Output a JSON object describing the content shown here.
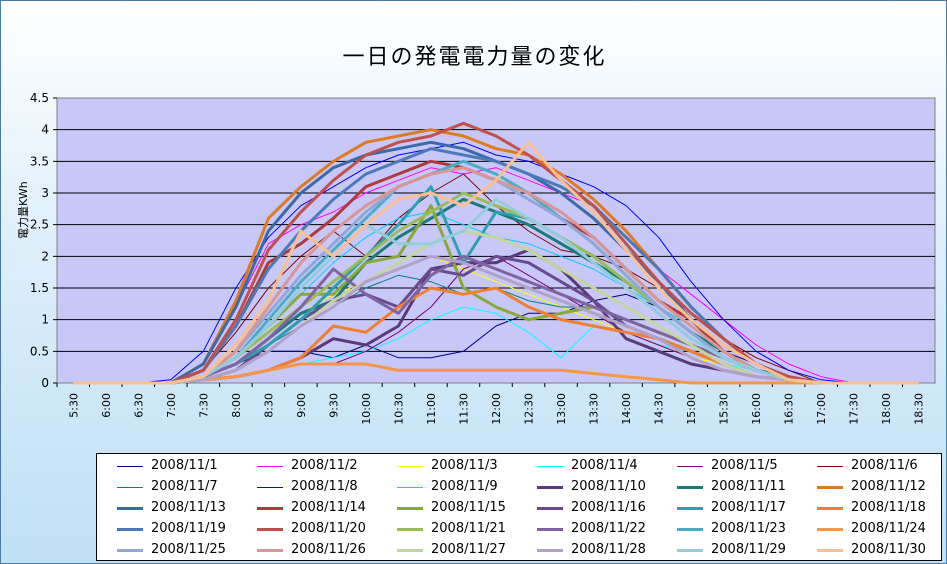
{
  "chart_data": {
    "type": "line",
    "title": "一日の発電電力量の変化",
    "ylabel": "電力量KWh",
    "xlabel": "",
    "ylim": [
      0,
      4.5
    ],
    "yticks": [
      "0",
      "0.5",
      "1",
      "1.5",
      "2",
      "2.5",
      "3",
      "3.5",
      "4",
      "4.5"
    ],
    "categories": [
      "5:30",
      "6:00",
      "6:30",
      "7:00",
      "7:30",
      "8:00",
      "8:30",
      "9:00",
      "9:30",
      "10:00",
      "10:30",
      "11:00",
      "11:30",
      "12:00",
      "12:30",
      "13:00",
      "13:30",
      "14:00",
      "14:30",
      "15:00",
      "15:30",
      "16:00",
      "16:30",
      "17:00",
      "17:30",
      "18:00",
      "18:30"
    ],
    "legend_position": "bottom",
    "grid": true,
    "series": [
      {
        "name": "2008/11/1",
        "color": "#000080",
        "width": 1,
        "values": [
          0,
          0,
          0,
          0,
          0.1,
          0.3,
          0.5,
          0.5,
          0.4,
          0.6,
          0.4,
          0.4,
          0.5,
          0.9,
          1.1,
          1.1,
          1.3,
          1.4,
          1.2,
          0.8,
          0.5,
          0.3,
          0.1,
          0,
          0,
          0,
          0
        ]
      },
      {
        "name": "2008/11/2",
        "color": "#ff00ff",
        "width": 1,
        "values": [
          0,
          0,
          0,
          0,
          0.3,
          1.2,
          2.2,
          2.5,
          2.7,
          3.0,
          3.2,
          3.4,
          3.3,
          3.4,
          3.2,
          3.0,
          2.8,
          2.3,
          1.8,
          1.4,
          1.0,
          0.6,
          0.3,
          0.1,
          0,
          0,
          0
        ]
      },
      {
        "name": "2008/11/3",
        "color": "#ffff00",
        "width": 1,
        "values": [
          0,
          0,
          0,
          0,
          0.1,
          0.4,
          0.8,
          1.1,
          1.4,
          1.6,
          1.8,
          2.0,
          1.8,
          1.6,
          1.4,
          1.2,
          1.0,
          0.8,
          0.6,
          0.4,
          0.3,
          0.2,
          0.1,
          0,
          0,
          0,
          0
        ]
      },
      {
        "name": "2008/11/4",
        "color": "#00ffff",
        "width": 1,
        "values": [
          0,
          0,
          0,
          0,
          0.05,
          0.1,
          0.2,
          0.3,
          0.4,
          0.5,
          0.7,
          1.0,
          1.2,
          1.1,
          0.8,
          0.4,
          0.9,
          0.8,
          0.6,
          0.5,
          0.3,
          0.2,
          0.1,
          0,
          0,
          0,
          0
        ]
      },
      {
        "name": "2008/11/5",
        "color": "#800080",
        "width": 1,
        "values": [
          0,
          0,
          0,
          0,
          0.05,
          0.1,
          0.2,
          0.3,
          0.3,
          0.5,
          0.8,
          1.2,
          1.8,
          2.0,
          1.7,
          1.4,
          1.1,
          0.8,
          0.6,
          0.4,
          0.2,
          0.1,
          0.05,
          0,
          0,
          0,
          0
        ]
      },
      {
        "name": "2008/11/6",
        "color": "#800000",
        "width": 1,
        "values": [
          0,
          0,
          0,
          0,
          0.2,
          0.8,
          1.5,
          2.0,
          2.4,
          2.0,
          2.6,
          3.0,
          3.3,
          2.8,
          2.4,
          2.1,
          2.0,
          1.8,
          1.5,
          1.1,
          0.7,
          0.4,
          0.2,
          0,
          0,
          0,
          0
        ]
      },
      {
        "name": "2008/11/7",
        "color": "#008080",
        "width": 1,
        "values": [
          0,
          0,
          0,
          0,
          0.1,
          0.3,
          0.6,
          0.9,
          1.2,
          1.5,
          1.7,
          1.6,
          1.4,
          1.5,
          1.3,
          1.2,
          1.2,
          1.0,
          0.8,
          0.6,
          0.4,
          0.2,
          0.1,
          0,
          0,
          0,
          0
        ]
      },
      {
        "name": "2008/11/8",
        "color": "#0000ff",
        "width": 1,
        "values": [
          0,
          0,
          0,
          0.05,
          0.5,
          1.5,
          2.3,
          2.8,
          3.1,
          3.4,
          3.6,
          3.7,
          3.8,
          3.6,
          3.5,
          3.3,
          3.1,
          2.8,
          2.3,
          1.6,
          1.0,
          0.5,
          0.2,
          0.05,
          0,
          0,
          0
        ]
      },
      {
        "name": "2008/11/9",
        "color": "#00ccff",
        "width": 1,
        "values": [
          0,
          0,
          0,
          0,
          0.1,
          0.4,
          0.9,
          1.4,
          1.9,
          2.3,
          2.6,
          2.7,
          2.5,
          2.3,
          2.2,
          2.0,
          1.8,
          1.5,
          1.2,
          0.9,
          0.6,
          0.3,
          0.1,
          0,
          0,
          0,
          0
        ]
      },
      {
        "name": "2008/11/10",
        "color": "#5a3a7a",
        "width": 3,
        "values": [
          0,
          0,
          0,
          0,
          0.05,
          0.1,
          0.2,
          0.4,
          0.7,
          0.6,
          0.9,
          1.8,
          1.9,
          1.9,
          2.1,
          1.8,
          1.3,
          0.7,
          0.5,
          0.3,
          0.2,
          0.1,
          0.05,
          0,
          0,
          0,
          0
        ]
      },
      {
        "name": "2008/11/11",
        "color": "#1c7a7a",
        "width": 3,
        "values": [
          0,
          0,
          0,
          0,
          0.1,
          0.3,
          0.7,
          1.1,
          1.3,
          1.9,
          2.3,
          2.6,
          2.9,
          2.7,
          2.5,
          2.2,
          1.9,
          1.6,
          1.2,
          0.8,
          0.5,
          0.2,
          0.1,
          0,
          0,
          0,
          0
        ]
      },
      {
        "name": "2008/11/12",
        "color": "#e07a20",
        "width": 3,
        "values": [
          0,
          0,
          0,
          0,
          0.3,
          1.3,
          2.6,
          3.1,
          3.5,
          3.8,
          3.9,
          4.0,
          3.9,
          3.7,
          3.6,
          3.3,
          2.9,
          2.4,
          1.8,
          1.2,
          0.7,
          0.3,
          0.1,
          0,
          0,
          0,
          0
        ]
      },
      {
        "name": "2008/11/13",
        "color": "#3a6aa8",
        "width": 3,
        "values": [
          0,
          0,
          0,
          0,
          0.3,
          1.2,
          2.4,
          3.0,
          3.4,
          3.6,
          3.7,
          3.8,
          3.7,
          3.5,
          3.3,
          3.0,
          2.6,
          2.1,
          1.6,
          1.0,
          0.6,
          0.3,
          0.1,
          0,
          0,
          0,
          0
        ]
      },
      {
        "name": "2008/11/14",
        "color": "#b03a3a",
        "width": 3,
        "values": [
          0,
          0,
          0,
          0,
          0.2,
          0.9,
          1.9,
          2.2,
          2.6,
          3.1,
          3.3,
          3.5,
          3.4,
          3.2,
          3.0,
          2.6,
          2.3,
          1.8,
          1.3,
          1.0,
          0.5,
          0.2,
          0.05,
          0,
          0,
          0,
          0
        ]
      },
      {
        "name": "2008/11/15",
        "color": "#88a838",
        "width": 3,
        "values": [
          0,
          0,
          0,
          0,
          0.1,
          0.4,
          0.9,
          1.4,
          1.4,
          1.9,
          2.0,
          2.8,
          1.5,
          1.2,
          1.0,
          1.1,
          1.2,
          1.0,
          0.8,
          0.6,
          0.4,
          0.2,
          0.05,
          0,
          0,
          0,
          0
        ]
      },
      {
        "name": "2008/11/16",
        "color": "#6a4a90",
        "width": 3,
        "values": [
          0,
          0,
          0,
          0,
          0.05,
          0.2,
          0.6,
          1.0,
          1.3,
          1.4,
          1.2,
          1.8,
          1.7,
          2.0,
          1.9,
          1.6,
          1.3,
          0.9,
          0.7,
          0.5,
          0.3,
          0.1,
          0.05,
          0,
          0,
          0,
          0
        ]
      },
      {
        "name": "2008/11/17",
        "color": "#2aa0b0",
        "width": 3,
        "values": [
          0,
          0,
          0,
          0,
          0.1,
          0.3,
          0.6,
          1.0,
          1.5,
          2.0,
          2.5,
          3.1,
          1.9,
          2.7,
          2.6,
          2.3,
          2.0,
          1.6,
          1.2,
          0.8,
          0.4,
          0.2,
          0.05,
          0,
          0,
          0,
          0
        ]
      },
      {
        "name": "2008/11/18",
        "color": "#f08030",
        "width": 3,
        "values": [
          0,
          0,
          0,
          0,
          0.05,
          0.1,
          0.2,
          0.4,
          0.9,
          0.8,
          1.2,
          1.5,
          1.4,
          1.5,
          1.2,
          1.0,
          0.9,
          0.8,
          0.7,
          0.5,
          0.3,
          0.1,
          0.05,
          0,
          0,
          0,
          0
        ]
      },
      {
        "name": "2008/11/19",
        "color": "#4a7ab8",
        "width": 3,
        "values": [
          0,
          0,
          0,
          0,
          0.2,
          0.9,
          1.8,
          2.4,
          2.9,
          3.3,
          3.5,
          3.7,
          3.6,
          3.5,
          3.3,
          3.1,
          2.8,
          2.3,
          1.8,
          1.2,
          0.7,
          0.3,
          0.1,
          0,
          0,
          0,
          0
        ]
      },
      {
        "name": "2008/11/20",
        "color": "#c0504d",
        "width": 3,
        "values": [
          0,
          0,
          0,
          0,
          0.2,
          1.0,
          2.1,
          2.7,
          3.2,
          3.6,
          3.8,
          3.9,
          4.1,
          3.9,
          3.6,
          3.2,
          2.8,
          2.2,
          1.6,
          1.1,
          0.7,
          0.3,
          0.1,
          0,
          0,
          0,
          0
        ]
      },
      {
        "name": "2008/11/21",
        "color": "#9bbb59",
        "width": 3,
        "values": [
          0,
          0,
          0,
          0,
          0.1,
          0.4,
          0.8,
          1.2,
          1.6,
          2.0,
          2.4,
          2.7,
          3.0,
          2.8,
          2.6,
          2.3,
          2.0,
          1.6,
          1.2,
          0.8,
          0.4,
          0.2,
          0.05,
          0,
          0,
          0,
          0
        ]
      },
      {
        "name": "2008/11/22",
        "color": "#8064a2",
        "width": 3,
        "values": [
          0,
          0,
          0,
          0,
          0.1,
          0.3,
          0.7,
          1.2,
          1.8,
          1.4,
          1.1,
          1.7,
          2.0,
          1.8,
          1.6,
          1.4,
          1.2,
          1.0,
          0.8,
          0.6,
          0.4,
          0.2,
          0.05,
          0,
          0,
          0,
          0
        ]
      },
      {
        "name": "2008/11/23",
        "color": "#4bacc6",
        "width": 3,
        "values": [
          0,
          0,
          0,
          0,
          0.1,
          0.4,
          1.0,
          1.6,
          2.1,
          2.6,
          3.1,
          3.3,
          3.5,
          3.3,
          3.0,
          2.6,
          2.2,
          1.7,
          1.2,
          0.8,
          0.4,
          0.2,
          0.05,
          0,
          0,
          0,
          0
        ]
      },
      {
        "name": "2008/11/24",
        "color": "#f79646",
        "width": 3,
        "values": [
          0,
          0,
          0,
          0,
          0.05,
          0.1,
          0.2,
          0.3,
          0.3,
          0.3,
          0.2,
          0.2,
          0.2,
          0.2,
          0.2,
          0.2,
          0.15,
          0.1,
          0.05,
          0,
          0,
          0,
          0,
          0,
          0,
          0,
          0
        ]
      },
      {
        "name": "2008/11/25",
        "color": "#8fa8d8",
        "width": 3,
        "values": [
          0,
          0,
          0,
          0,
          0.1,
          0.5,
          1.1,
          1.7,
          2.2,
          2.7,
          3.1,
          3.3,
          3.4,
          3.2,
          2.9,
          2.6,
          2.2,
          1.7,
          1.2,
          0.8,
          0.4,
          0.2,
          0.05,
          0,
          0,
          0,
          0
        ]
      },
      {
        "name": "2008/11/26",
        "color": "#d99694",
        "width": 3,
        "values": [
          0,
          0,
          0,
          0,
          0.1,
          0.5,
          1.2,
          1.9,
          2.4,
          2.8,
          3.1,
          3.3,
          3.4,
          3.2,
          3.0,
          2.7,
          2.3,
          1.8,
          1.3,
          0.9,
          0.5,
          0.2,
          0.05,
          0,
          0,
          0,
          0
        ]
      },
      {
        "name": "2008/11/27",
        "color": "#c3d69b",
        "width": 3,
        "values": [
          0,
          0,
          0,
          0,
          0.05,
          0.2,
          0.5,
          0.9,
          1.3,
          1.6,
          1.9,
          2.2,
          2.4,
          2.3,
          2.1,
          1.8,
          1.5,
          1.2,
          0.9,
          0.6,
          0.3,
          0.1,
          0.05,
          0,
          0,
          0,
          0
        ]
      },
      {
        "name": "2008/11/28",
        "color": "#b2a1c7",
        "width": 3,
        "values": [
          0,
          0,
          0,
          0,
          0.05,
          0.2,
          0.5,
          0.9,
          1.2,
          1.6,
          1.8,
          2.0,
          1.9,
          1.7,
          1.5,
          1.3,
          1.1,
          0.9,
          0.7,
          0.4,
          0.2,
          0.1,
          0.05,
          0,
          0,
          0,
          0
        ]
      },
      {
        "name": "2008/11/29",
        "color": "#93cddd",
        "width": 3,
        "values": [
          0,
          0,
          0,
          0,
          0.1,
          0.4,
          0.9,
          1.5,
          2.0,
          2.5,
          2.2,
          2.2,
          2.4,
          2.9,
          2.6,
          2.3,
          1.9,
          1.5,
          1.1,
          0.7,
          0.4,
          0.2,
          0.05,
          0,
          0,
          0,
          0
        ]
      },
      {
        "name": "2008/11/30",
        "color": "#fac090",
        "width": 3,
        "values": [
          0,
          0,
          0,
          0,
          0.1,
          0.6,
          1.3,
          2.4,
          2.0,
          2.5,
          2.9,
          3.0,
          2.8,
          3.2,
          3.8,
          3.2,
          2.7,
          2.1,
          1.5,
          1.0,
          0.6,
          0.3,
          0.05,
          0,
          0,
          0,
          0
        ]
      }
    ]
  }
}
